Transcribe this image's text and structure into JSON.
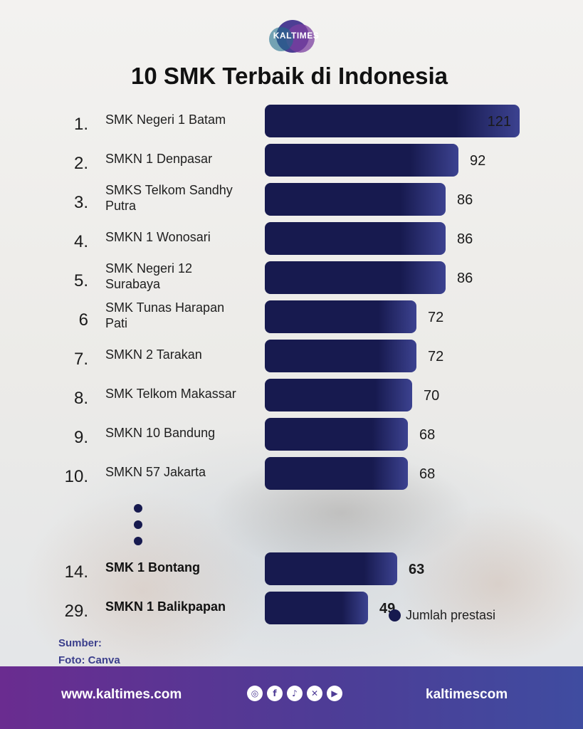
{
  "logo_text": "KALTIMES",
  "title": "10 SMK Terbaik di Indonesia",
  "chart_data": {
    "type": "bar",
    "orientation": "horizontal",
    "title": "10 SMK Terbaik di Indonesia",
    "ranks": [
      "1.",
      "2.",
      "3.",
      "4.",
      "5.",
      "6",
      "7.",
      "8.",
      "9.",
      "10.",
      "14.",
      "29."
    ],
    "categories": [
      "SMK Negeri 1 Batam",
      "SMKN 1 Denpasar",
      "SMKS Telkom Sandhy Putra",
      "SMKN 1 Wonosari",
      "SMK Negeri 12 Surabaya",
      "SMK Tunas Harapan Pati",
      "SMKN 2 Tarakan",
      "SMK Telkom Makassar",
      "SMKN 10 Bandung",
      "SMKN 57 Jakarta",
      "SMK 1 Bontang",
      "SMKN 1 Balikpapan"
    ],
    "series": [
      {
        "name": "Jumlah prestasi",
        "values": [
          121,
          92,
          86,
          86,
          86,
          72,
          72,
          70,
          68,
          68,
          63,
          49
        ]
      }
    ],
    "highlighted": [
      "SMK 1 Bontang",
      "SMKN 1 Balikpapan"
    ],
    "legend_position": "bottom-right",
    "bar_color": "#171a4f",
    "grid": false,
    "xlim": [
      0,
      121
    ]
  },
  "legend_label": "Jumlah prestasi",
  "source": {
    "sumber": "Sumber:",
    "foto": "Foto: Canva"
  },
  "footer": {
    "website": "www.kaltimes.com",
    "handle": "kaltimescom",
    "social_icons": [
      "instagram-icon",
      "facebook-icon",
      "tiktok-icon",
      "x-icon",
      "youtube-icon"
    ]
  },
  "colors": {
    "footer_start": "#6a2c90",
    "footer_end": "#3f4ca0",
    "accent": "#3b3f8c"
  }
}
